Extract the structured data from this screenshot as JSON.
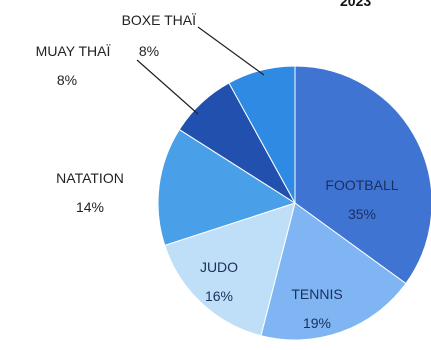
{
  "chart_data": {
    "type": "pie",
    "title": "2023",
    "slices": [
      {
        "label": "FOOTBALL",
        "value": 35,
        "value_label": "35%",
        "color": "#3f74d2"
      },
      {
        "label": "TENNIS",
        "value": 19,
        "value_label": "19%",
        "color": "#7fb5f2"
      },
      {
        "label": "JUDO",
        "value": 16,
        "value_label": "16%",
        "color": "#bfdff8"
      },
      {
        "label": "NATATION",
        "value": 14,
        "value_label": "14%",
        "color": "#4aa0e8"
      },
      {
        "label": "MUAY THAÏ",
        "value": 8,
        "value_label": "8%",
        "color": "#2150ae"
      },
      {
        "label": "BOXE THAÏ",
        "value": 8,
        "value_label": "8%",
        "color": "#2e8ae2"
      }
    ]
  }
}
